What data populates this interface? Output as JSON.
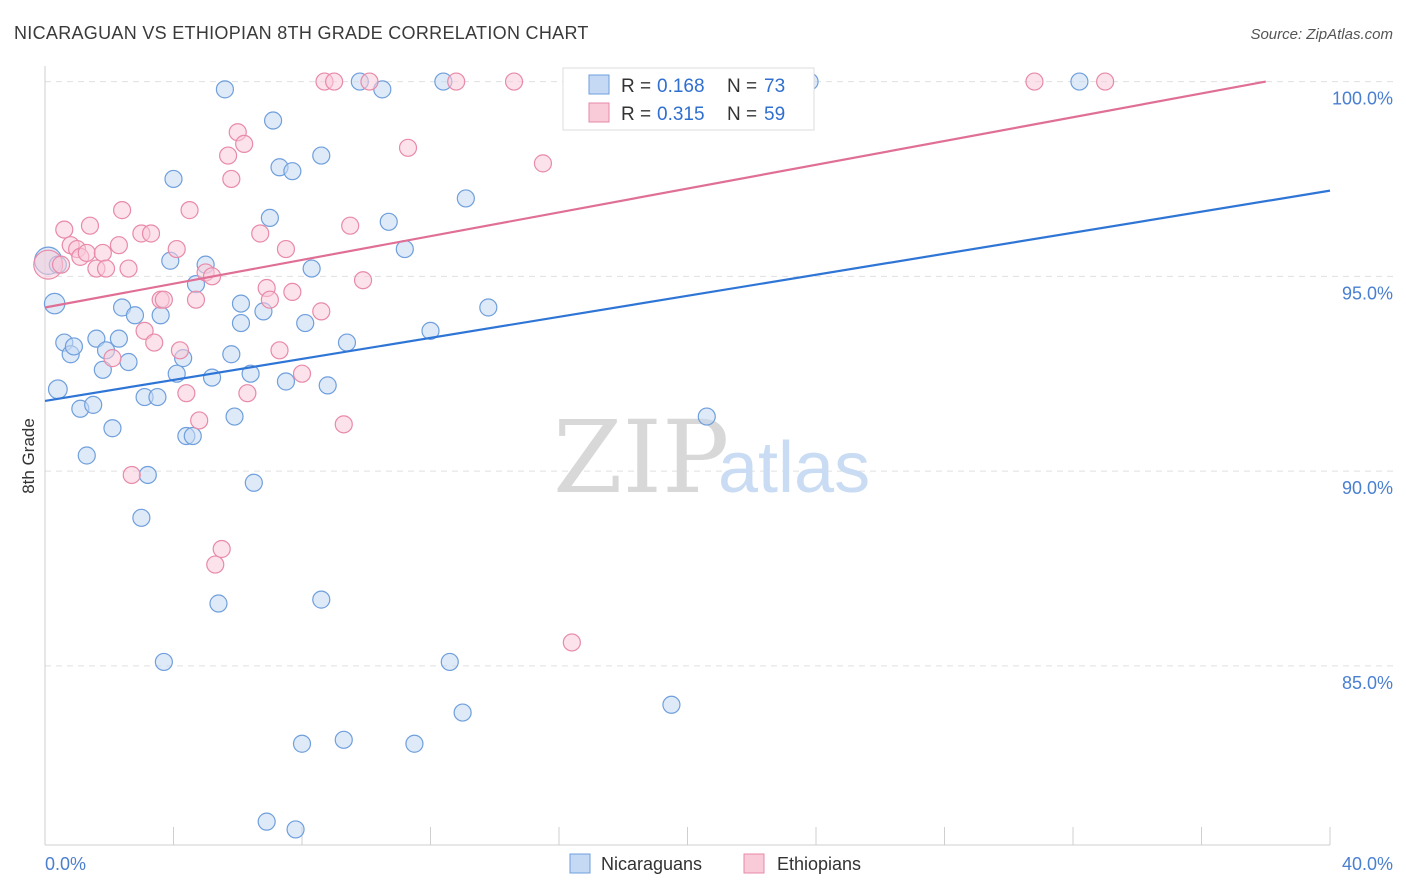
{
  "title": "NICARAGUAN VS ETHIOPIAN 8TH GRADE CORRELATION CHART",
  "source": "Source: ZipAtlas.com",
  "watermark": {
    "zip": "ZIP",
    "atlas": "atlas"
  },
  "legend_box": {
    "rows": [
      {
        "r_label": "R = ",
        "r_value": "0.168",
        "n_label": "N = ",
        "n_value": "73"
      },
      {
        "r_label": "R = ",
        "r_value": "0.315",
        "n_label": "N = ",
        "n_value": "59"
      }
    ]
  },
  "bottom_legend": [
    "Nicaraguans",
    "Ethiopians"
  ],
  "colors": {
    "blue_fill": "#c5d9f4",
    "blue_stroke": "#6f9fdc",
    "blue_line": "#2f75d6",
    "pink_fill": "#f9cbd8",
    "pink_stroke": "#e88aa8",
    "pink_line": "#e06f96",
    "grid": "#e0e0e0",
    "tick_text": "#4a7fd0"
  },
  "chart_data": {
    "type": "scatter",
    "title": "NICARAGUAN VS ETHIOPIAN 8TH GRADE CORRELATION CHART",
    "xlabel": "",
    "ylabel": "8th Grade",
    "xlim": [
      0,
      40
    ],
    "ylim": [
      80.4,
      100.4
    ],
    "x_tick_labels": [
      {
        "value": 0,
        "label": "0.0%"
      },
      {
        "value": 40,
        "label": "40.0%"
      }
    ],
    "y_tick_labels": [
      {
        "value": 85,
        "label": "85.0%"
      },
      {
        "value": 90,
        "label": "90.0%"
      },
      {
        "value": 95,
        "label": "95.0%"
      },
      {
        "value": 100,
        "label": "100.0%"
      }
    ],
    "grid": true,
    "legend_position": "bottom",
    "series": [
      {
        "name": "Nicaraguans",
        "r": 0.168,
        "n": 73,
        "trend": {
          "x": [
            0,
            40
          ],
          "y": [
            91.8,
            97.2
          ]
        },
        "points": [
          [
            0.1,
            95.4,
            1.6
          ],
          [
            0.3,
            94.3,
            1.2
          ],
          [
            0.4,
            92.1,
            1.1
          ],
          [
            0.4,
            95.3,
            1.0
          ],
          [
            0.6,
            93.3,
            1.0
          ],
          [
            0.8,
            93.0,
            1.0
          ],
          [
            0.9,
            93.2,
            1.0
          ],
          [
            1.1,
            91.6,
            1.0
          ],
          [
            1.3,
            90.4,
            1.0
          ],
          [
            1.5,
            91.7,
            1.0
          ],
          [
            1.6,
            93.4,
            1.0
          ],
          [
            1.8,
            92.6,
            1.0
          ],
          [
            1.9,
            93.1,
            1.0
          ],
          [
            2.1,
            91.1,
            1.0
          ],
          [
            2.3,
            93.4,
            1.0
          ],
          [
            2.4,
            94.2,
            1.0
          ],
          [
            2.6,
            92.8,
            1.0
          ],
          [
            2.8,
            94.0,
            1.0
          ],
          [
            3.0,
            88.8,
            1.0
          ],
          [
            3.1,
            91.9,
            1.0
          ],
          [
            3.2,
            89.9,
            1.0
          ],
          [
            3.5,
            91.9,
            1.0
          ],
          [
            3.6,
            94.0,
            1.0
          ],
          [
            3.7,
            85.1,
            1.0
          ],
          [
            3.9,
            95.4,
            1.0
          ],
          [
            4.0,
            97.5,
            1.0
          ],
          [
            4.1,
            92.5,
            1.0
          ],
          [
            4.3,
            92.9,
            1.0
          ],
          [
            4.4,
            90.9,
            1.0
          ],
          [
            4.6,
            90.9,
            1.0
          ],
          [
            4.7,
            94.8,
            1.0
          ],
          [
            5.0,
            95.3,
            1.0
          ],
          [
            5.2,
            92.4,
            1.0
          ],
          [
            5.4,
            86.6,
            1.0
          ],
          [
            5.6,
            99.8,
            1.0
          ],
          [
            5.8,
            93.0,
            1.0
          ],
          [
            5.9,
            91.4,
            1.0
          ],
          [
            6.1,
            94.3,
            1.0
          ],
          [
            6.1,
            93.8,
            1.0
          ],
          [
            6.4,
            92.5,
            1.0
          ],
          [
            6.5,
            89.7,
            1.0
          ],
          [
            6.8,
            94.1,
            1.0
          ],
          [
            6.9,
            81.0,
            1.0
          ],
          [
            7.0,
            96.5,
            1.0
          ],
          [
            7.1,
            99.0,
            1.0
          ],
          [
            7.3,
            97.8,
            1.0
          ],
          [
            7.5,
            92.3,
            1.0
          ],
          [
            7.7,
            97.7,
            1.0
          ],
          [
            7.8,
            80.8,
            1.0
          ],
          [
            8.0,
            83.0,
            1.0
          ],
          [
            8.1,
            93.8,
            1.0
          ],
          [
            8.3,
            95.2,
            1.0
          ],
          [
            8.6,
            98.1,
            1.0
          ],
          [
            8.6,
            86.7,
            1.0
          ],
          [
            8.8,
            92.2,
            1.0
          ],
          [
            9.3,
            83.1,
            1.0
          ],
          [
            9.4,
            93.3,
            1.0
          ],
          [
            9.8,
            100.0,
            1.0
          ],
          [
            10.5,
            99.8,
            1.0
          ],
          [
            10.7,
            96.4,
            1.0
          ],
          [
            11.2,
            95.7,
            1.0
          ],
          [
            11.5,
            83.0,
            1.0
          ],
          [
            12.0,
            93.6,
            1.0
          ],
          [
            12.4,
            100.0,
            1.0
          ],
          [
            12.6,
            85.1,
            1.0
          ],
          [
            13.0,
            83.8,
            1.0
          ],
          [
            13.1,
            97.0,
            1.0
          ],
          [
            13.8,
            94.2,
            1.0
          ],
          [
            16.9,
            100.0,
            1.0
          ],
          [
            19.5,
            84.0,
            1.0
          ],
          [
            20.6,
            91.4,
            1.0
          ],
          [
            23.8,
            100.0,
            1.0
          ],
          [
            32.2,
            100.0,
            1.0
          ]
        ]
      },
      {
        "name": "Ethiopians",
        "r": 0.315,
        "n": 59,
        "trend": {
          "x": [
            0,
            38.0
          ],
          "y": [
            94.2,
            100.0
          ]
        },
        "points": [
          [
            0.1,
            95.3,
            1.7
          ],
          [
            0.5,
            95.3,
            1.0
          ],
          [
            0.6,
            96.2,
            1.0
          ],
          [
            0.8,
            95.8,
            1.0
          ],
          [
            1.0,
            95.7,
            1.0
          ],
          [
            1.1,
            95.5,
            1.0
          ],
          [
            1.3,
            95.6,
            1.0
          ],
          [
            1.4,
            96.3,
            1.0
          ],
          [
            1.6,
            95.2,
            1.0
          ],
          [
            1.8,
            95.6,
            1.0
          ],
          [
            1.9,
            95.2,
            1.0
          ],
          [
            2.1,
            92.9,
            1.0
          ],
          [
            2.3,
            95.8,
            1.0
          ],
          [
            2.4,
            96.7,
            1.0
          ],
          [
            2.6,
            95.2,
            1.0
          ],
          [
            2.7,
            89.9,
            1.0
          ],
          [
            3.0,
            96.1,
            1.0
          ],
          [
            3.1,
            93.6,
            1.0
          ],
          [
            3.3,
            96.1,
            1.0
          ],
          [
            3.4,
            93.3,
            1.0
          ],
          [
            3.6,
            94.4,
            1.0
          ],
          [
            3.7,
            94.4,
            1.0
          ],
          [
            4.1,
            95.7,
            1.0
          ],
          [
            4.2,
            93.1,
            1.0
          ],
          [
            4.4,
            92.0,
            1.0
          ],
          [
            4.5,
            96.7,
            1.0
          ],
          [
            4.7,
            94.4,
            1.0
          ],
          [
            4.8,
            91.3,
            1.0
          ],
          [
            5.0,
            95.1,
            1.0
          ],
          [
            5.2,
            95.0,
            1.0
          ],
          [
            5.3,
            87.6,
            1.0
          ],
          [
            5.5,
            88.0,
            1.0
          ],
          [
            5.7,
            98.1,
            1.0
          ],
          [
            5.8,
            97.5,
            1.0
          ],
          [
            6.0,
            98.7,
            1.0
          ],
          [
            6.2,
            98.4,
            1.0
          ],
          [
            6.3,
            92.0,
            1.0
          ],
          [
            6.7,
            96.1,
            1.0
          ],
          [
            6.9,
            94.7,
            1.0
          ],
          [
            7.0,
            94.4,
            1.0
          ],
          [
            7.3,
            93.1,
            1.0
          ],
          [
            7.5,
            95.7,
            1.0
          ],
          [
            7.7,
            94.6,
            1.0
          ],
          [
            8.0,
            92.5,
            1.0
          ],
          [
            8.6,
            94.1,
            1.0
          ],
          [
            8.7,
            100.0,
            1.0
          ],
          [
            9.0,
            100.0,
            1.0
          ],
          [
            9.3,
            91.2,
            1.0
          ],
          [
            9.5,
            96.3,
            1.0
          ],
          [
            9.9,
            94.9,
            1.0
          ],
          [
            10.1,
            100.0,
            1.0
          ],
          [
            11.3,
            98.3,
            1.0
          ],
          [
            12.8,
            100.0,
            1.0
          ],
          [
            14.6,
            100.0,
            1.0
          ],
          [
            15.5,
            97.9,
            1.0
          ],
          [
            16.4,
            85.6,
            1.0
          ],
          [
            21.0,
            100.0,
            1.0
          ],
          [
            30.8,
            100.0,
            1.0
          ],
          [
            33.0,
            100.0,
            1.0
          ]
        ]
      }
    ]
  }
}
